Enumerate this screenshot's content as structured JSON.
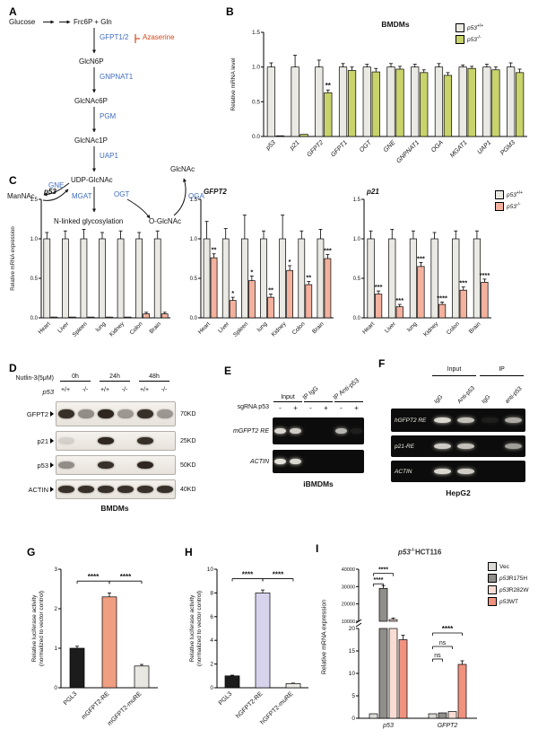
{
  "panels": {
    "a": "A",
    "b": "B",
    "c": "C",
    "d": "D",
    "e": "E",
    "f": "F",
    "g": "G",
    "h": "H",
    "i": "I"
  },
  "pathway": {
    "glucose": "Glucose",
    "frc6p": "Frc6P + Gln",
    "gfpt": "GFPT1/2",
    "azaserine": "Azaserine",
    "glcn6p": "GlcN6P",
    "gnpnat1": "GNPNAT1",
    "glcnac6p": "GlcNAc6P",
    "pgm": "PGM",
    "glcnac1p": "GlcNAc1P",
    "uap1": "UAP1",
    "udpglcnac": "UDP-GlcNAc",
    "gne": "GNE",
    "mannac": "ManNAc",
    "mgat": "MGAT",
    "ogt": "OGT",
    "nlinked": "N-linked glycosylation",
    "glcnac": "GlcNAc",
    "oga": "OGA",
    "oglcnac": "O-GlcNAc"
  },
  "legends": {
    "b": {
      "items": [
        {
          "i": "p53",
          "sup": "+/+",
          "color": "#ebe9e4"
        },
        {
          "i": "p53",
          "sup": "-/-",
          "color": "#c8d36c"
        }
      ]
    },
    "c": {
      "items": [
        {
          "i": "p53",
          "sup": "+/+",
          "color": "#ebe9e4"
        },
        {
          "i": "p53",
          "sup": "-/-",
          "color": "#f3b19e"
        }
      ]
    },
    "i": {
      "items": [
        {
          "i": "",
          "n": "Vec",
          "color": "#dcdad6"
        },
        {
          "i": "p53",
          "n": "R175H",
          "color": "#908e8a"
        },
        {
          "i": "p53",
          "n": "R282W",
          "color": "#f9dcd4"
        },
        {
          "i": "p53",
          "n": "WT",
          "color": "#f0927e"
        }
      ]
    }
  },
  "i_title": {
    "i": "p53",
    "sup": "-/-",
    "n": "HCT116"
  },
  "chart_data": {
    "b": {
      "type": "bar",
      "title": "BMDMs",
      "ylabel": "Relative mRNA level",
      "ylim": [
        0,
        1.5
      ],
      "yticks": [
        "0.0",
        "0.5",
        "1.0",
        "1.5"
      ],
      "categories": [
        "p53",
        "p21",
        "GFPT2",
        "GFPT1",
        "OGT",
        "GNE",
        "GNPNAT1",
        "OGA",
        "MGAT1",
        "UAP1",
        "PGM3"
      ],
      "series": [
        {
          "name": "p53+/+",
          "color": "#ebe9e4",
          "values": [
            1,
            1,
            1,
            1,
            1,
            1,
            1,
            1,
            1,
            1,
            1
          ],
          "errors": [
            0.06,
            0.17,
            0.1,
            0.05,
            0.04,
            0.05,
            0.04,
            0.05,
            0.03,
            0.04,
            0.06
          ]
        },
        {
          "name": "p53-/-",
          "color": "#c8d36c",
          "values": [
            0.01,
            0.03,
            0.63,
            0.95,
            0.93,
            0.97,
            0.92,
            0.88,
            0.98,
            0.96,
            0.92
          ],
          "errors": [
            0,
            0,
            0.04,
            0.05,
            0.05,
            0.04,
            0.04,
            0.04,
            0.03,
            0.04,
            0.05
          ]
        }
      ],
      "sig": [
        {
          "gi": 2,
          "si": 1,
          "text": "**"
        }
      ],
      "xitalic": true
    },
    "c_p53": {
      "type": "bar",
      "title": "p53",
      "ylabel": "Relative mRNA expression",
      "ylim": [
        0,
        1.5
      ],
      "yticks": [
        "0.0",
        "0.5",
        "1.0",
        "1.5"
      ],
      "categories": [
        "Heart",
        "Liver",
        "Spleen",
        "lung",
        "Kidney",
        "Colon",
        "Brain"
      ],
      "series": [
        {
          "name": "p53+/+",
          "color": "#ebe9e4",
          "values": [
            1,
            1,
            1,
            1,
            1,
            1,
            1
          ],
          "errors": [
            0.08,
            0.1,
            0.12,
            0.08,
            0.1,
            0.08,
            0.1
          ]
        },
        {
          "name": "p53-/-",
          "color": "#f3b19e",
          "values": [
            0.01,
            0.01,
            0.01,
            0.01,
            0.01,
            0.05,
            0.05
          ],
          "errors": [
            0,
            0,
            0,
            0,
            0,
            0.02,
            0.02
          ]
        }
      ]
    },
    "c_gfpt2": {
      "type": "bar",
      "title": "GFPT2",
      "ylim": [
        0,
        1.5
      ],
      "yticks": [
        "0.0",
        "0.5",
        "1.0",
        "1.5"
      ],
      "categories": [
        "Heart",
        "Liver",
        "Spleen",
        "lung",
        "Kidney",
        "Colon",
        "Brain"
      ],
      "series": [
        {
          "name": "p53+/+",
          "color": "#ebe9e4",
          "values": [
            1,
            1,
            1,
            1,
            1,
            1,
            1
          ],
          "errors": [
            0.22,
            0.13,
            0.3,
            0.1,
            0.3,
            0.1,
            0.12
          ]
        },
        {
          "name": "p53-/-",
          "color": "#f3b19e",
          "values": [
            0.76,
            0.22,
            0.47,
            0.26,
            0.6,
            0.42,
            0.75
          ],
          "errors": [
            0.05,
            0.04,
            0.06,
            0.04,
            0.06,
            0.04,
            0.05
          ]
        }
      ],
      "sig": [
        {
          "gi": 0,
          "si": 1,
          "text": "**"
        },
        {
          "gi": 1,
          "si": 1,
          "text": "*"
        },
        {
          "gi": 2,
          "si": 1,
          "text": "*"
        },
        {
          "gi": 3,
          "si": 1,
          "text": "**"
        },
        {
          "gi": 4,
          "si": 1,
          "text": "*"
        },
        {
          "gi": 5,
          "si": 1,
          "text": "**"
        },
        {
          "gi": 6,
          "si": 1,
          "text": "***"
        }
      ]
    },
    "c_p21": {
      "type": "bar",
      "title": "p21",
      "ylim": [
        0,
        1.5
      ],
      "yticks": [
        "0.0",
        "0.5",
        "1.0",
        "1.5"
      ],
      "categories": [
        "Heart",
        "Liver",
        "lung",
        "Kidney",
        "Colon",
        "Brain"
      ],
      "series": [
        {
          "name": "p53+/+",
          "color": "#ebe9e4",
          "values": [
            1,
            1,
            1,
            1,
            1,
            1
          ],
          "errors": [
            0.1,
            0.12,
            0.1,
            0.08,
            0.1,
            0.1
          ]
        },
        {
          "name": "p53-/-",
          "color": "#f3b19e",
          "values": [
            0.3,
            0.14,
            0.65,
            0.17,
            0.35,
            0.45
          ],
          "errors": [
            0.04,
            0.03,
            0.05,
            0.03,
            0.04,
            0.04
          ]
        }
      ],
      "sig": [
        {
          "gi": 0,
          "si": 1,
          "text": "***"
        },
        {
          "gi": 1,
          "si": 1,
          "text": "***"
        },
        {
          "gi": 2,
          "si": 1,
          "text": "***"
        },
        {
          "gi": 3,
          "si": 1,
          "text": "****"
        },
        {
          "gi": 4,
          "si": 1,
          "text": "***"
        },
        {
          "gi": 5,
          "si": 1,
          "text": "****"
        }
      ]
    },
    "g": {
      "type": "bar",
      "ylabel": [
        "Relative luciferase activity",
        "(normalized to vector control)"
      ],
      "ylim": [
        0,
        3
      ],
      "yticks": [
        "0",
        "1",
        "2",
        "3"
      ],
      "categories": [
        "PGL3",
        "mGFPT2-RE",
        "mGFPT2-muRE"
      ],
      "series": [
        {
          "name": "construct",
          "color": [
            "#1c1c1c",
            "#f09e82",
            "#e9e7e2"
          ],
          "values": [
            1,
            2.3,
            0.55
          ],
          "errors": [
            0.05,
            0.1,
            0.04
          ]
        }
      ],
      "brackets": [
        {
          "x1f": 0.167,
          "x2f": 0.5,
          "yf": 0.1,
          "text": "****"
        },
        {
          "x1f": 0.5,
          "x2f": 0.833,
          "yf": 0.1,
          "text": "****"
        }
      ]
    },
    "h": {
      "type": "bar",
      "ylabel": [
        "Relative luciferase activity",
        "(normalized to vector control)"
      ],
      "ylim": [
        0,
        10
      ],
      "yticks": [
        "0",
        "2",
        "4",
        "6",
        "8",
        "10"
      ],
      "categories": [
        "PGL3",
        "hGFPT2-RE",
        "hGFPT2-muRE"
      ],
      "series": [
        {
          "name": "construct",
          "color": [
            "#1c1c1c",
            "#d8d3ec",
            "#eceae5"
          ],
          "values": [
            1,
            8,
            0.35
          ],
          "errors": [
            0.06,
            0.25,
            0.04
          ]
        }
      ],
      "brackets": [
        {
          "x1f": 0.167,
          "x2f": 0.5,
          "yf": 0.08,
          "text": "****"
        },
        {
          "x1f": 0.5,
          "x2f": 0.833,
          "yf": 0.08,
          "text": "****"
        }
      ]
    },
    "i_top": {
      "type": "bar",
      "ylim": [
        10000,
        40000
      ],
      "yticks": [
        "10000",
        "20000",
        "30000",
        "40000"
      ],
      "categories": [
        "p53",
        "GFPT2"
      ],
      "series": [
        {
          "name": "Vec",
          "color": "#dcdad6",
          "values": [
            1,
            1
          ],
          "errors": [
            0,
            0
          ]
        },
        {
          "name": "p53R175H",
          "color": "#908e8a",
          "values": [
            29000,
            1.2
          ],
          "errors": [
            1600,
            0
          ]
        },
        {
          "name": "p53R282W",
          "color": "#f9dcd4",
          "values": [
            11000,
            1.5
          ],
          "errors": [
            900,
            0
          ]
        },
        {
          "name": "p53WT",
          "color": "#f0927e",
          "values": [
            17.5,
            12
          ],
          "errors": [
            1,
            0.8
          ]
        }
      ],
      "brackets": [
        {
          "x1f": 0.125,
          "x2f": 0.208,
          "yf": 0.28,
          "text": "****"
        },
        {
          "x1f": 0.125,
          "x2f": 0.292,
          "yf": 0.08,
          "text": "****"
        }
      ],
      "noX": true,
      "baseline": false,
      "breakB": true
    },
    "i_bottom": {
      "type": "bar",
      "ylim": [
        0,
        20
      ],
      "yticks": [
        "0",
        "5",
        "10",
        "15",
        "20"
      ],
      "categories": [
        "p53",
        "GFPT2"
      ],
      "series": [
        {
          "name": "Vec",
          "color": "#dcdad6",
          "values": [
            1,
            1
          ],
          "errors": [
            0,
            0
          ]
        },
        {
          "name": "p53R175H",
          "color": "#908e8a",
          "values": [
            29000,
            1.2
          ],
          "errors": [
            1600,
            0
          ]
        },
        {
          "name": "p53R282W",
          "color": "#f9dcd4",
          "values": [
            11000,
            1.5
          ],
          "errors": [
            900,
            0
          ]
        },
        {
          "name": "p53WT",
          "color": "#f0927e",
          "values": [
            17.5,
            12
          ],
          "errors": [
            1,
            0.8
          ]
        }
      ],
      "brackets": [
        {
          "x1f": 0.625,
          "x2f": 0.708,
          "yf": 0.34,
          "text": "ns"
        },
        {
          "x1f": 0.625,
          "x2f": 0.792,
          "yf": 0.2,
          "text": "ns"
        },
        {
          "x1f": 0.625,
          "x2f": 0.875,
          "yf": 0.05,
          "text": "****"
        }
      ],
      "xitalic": true,
      "xrot": 0
    }
  },
  "blots": {
    "d": {
      "treatment": "Nutlin-3(5μM)",
      "times": [
        "0h",
        "24h",
        "48h"
      ],
      "genotype_label": "p53",
      "genotypes": [
        "+/+",
        "-/-",
        "+/+",
        "-/-",
        "+/+",
        "-/-"
      ],
      "rows": [
        {
          "label": "GFPT2",
          "marker": "70KD",
          "bands": [
            0.9,
            0.45,
            0.95,
            0.4,
            0.9,
            0.4
          ]
        },
        {
          "label": "p21",
          "marker": "25KD",
          "bands": [
            0.12,
            0,
            0.95,
            0,
            0.9,
            0
          ]
        },
        {
          "label": "p53",
          "marker": "50KD",
          "bands": [
            0.45,
            0,
            0.9,
            0,
            0.95,
            0
          ]
        },
        {
          "label": "ACTIN",
          "marker": "40KD",
          "bands": [
            0.9,
            0.9,
            0.9,
            0.9,
            0.9,
            0.9
          ]
        }
      ],
      "cell_label": "BMDMs"
    },
    "e": {
      "groups": [
        "Input",
        "IP IgG",
        "IP Anti-p53"
      ],
      "sg_label": "sgRNA p53",
      "sg": [
        "-",
        "+",
        "-",
        "+",
        "-",
        "+"
      ],
      "rows": [
        {
          "label": "mGFPT2 RE",
          "bands": [
            0.9,
            0.85,
            0,
            0,
            0.75,
            0.08
          ]
        },
        {
          "label": "ACTIN",
          "bands": [
            0.95,
            0.9,
            0,
            0,
            0,
            0
          ]
        }
      ],
      "cell_label": "iBMDMs"
    },
    "f": {
      "groups": [
        "Input",
        "IP"
      ],
      "lane_labels": [
        "IgG",
        "Anti-p53",
        "IgG",
        "anti-p53"
      ],
      "rows": [
        {
          "label": "hGFPT2 RE",
          "bands": [
            0.9,
            0.8,
            0.08,
            0.7
          ]
        },
        {
          "label": "p21-RE",
          "bands": [
            0.85,
            0.8,
            0,
            0.65
          ]
        },
        {
          "label": "ACTIN",
          "bands": [
            0.9,
            0.85,
            0,
            0
          ]
        }
      ],
      "cell_label": "HepG2"
    }
  }
}
